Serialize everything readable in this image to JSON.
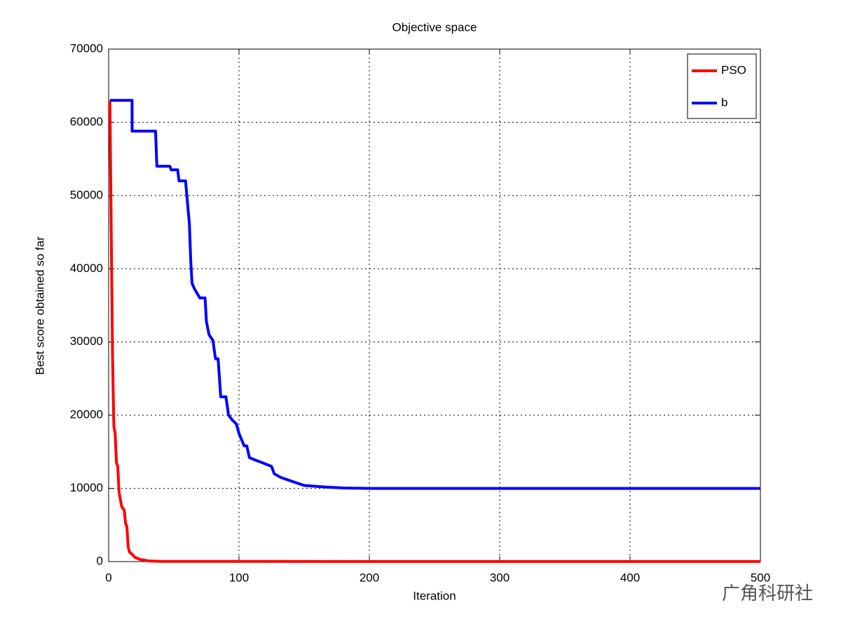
{
  "chart_data": {
    "type": "line",
    "title": "Objective space",
    "x_label": "Iteration",
    "y_label": "Best score obtained so far",
    "watermark": "广角科研社",
    "xlim": [
      0,
      500
    ],
    "ylim": [
      0,
      70000
    ],
    "xticks": [
      0,
      100,
      200,
      300,
      400,
      500
    ],
    "yticks": [
      0,
      10000,
      20000,
      30000,
      40000,
      50000,
      60000,
      70000
    ],
    "grid": true,
    "legend": "upper right",
    "series": [
      {
        "name": "PSO",
        "color": "#ff0000",
        "x": [
          1,
          2,
          3,
          4,
          5,
          6,
          7,
          8,
          9,
          10,
          12,
          13,
          14,
          15,
          16,
          18,
          20,
          24,
          30,
          40,
          500
        ],
        "values": [
          63000,
          45000,
          28000,
          18500,
          17500,
          13500,
          13000,
          9500,
          8500,
          7500,
          7000,
          5200,
          4800,
          2000,
          1300,
          1000,
          600,
          300,
          100,
          20,
          10
        ]
      },
      {
        "name": "b",
        "color": "#0000ff",
        "x": [
          1,
          18,
          18,
          36,
          37,
          39,
          47,
          48,
          53,
          54,
          59,
          60,
          62,
          63,
          64,
          66,
          70,
          74,
          75,
          77,
          80,
          82,
          84,
          86,
          90,
          92,
          95,
          98,
          100,
          104,
          106,
          108,
          112,
          118,
          125,
          127,
          132,
          140,
          150,
          165,
          180,
          200,
          500
        ],
        "values": [
          63000,
          63000,
          58800,
          58800,
          54000,
          54000,
          54000,
          53500,
          53500,
          52000,
          52000,
          50000,
          46000,
          41000,
          38000,
          37200,
          36000,
          36000,
          32800,
          31000,
          30200,
          27700,
          27700,
          22500,
          22500,
          20000,
          19300,
          18800,
          17500,
          15800,
          15800,
          14200,
          13900,
          13500,
          13000,
          12000,
          11500,
          11000,
          10400,
          10200,
          10050,
          10000,
          10000
        ]
      }
    ]
  }
}
